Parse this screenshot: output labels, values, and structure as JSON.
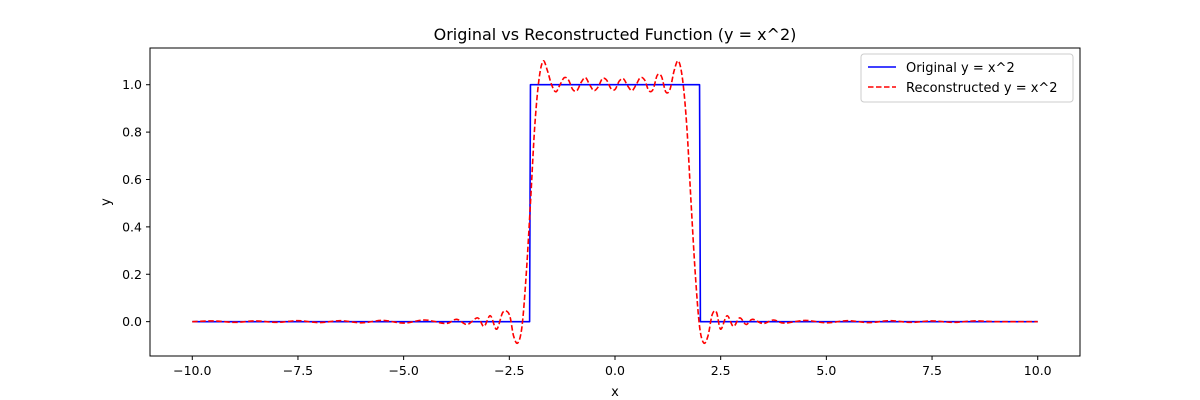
{
  "chart_data": {
    "type": "line",
    "title": "Original vs Reconstructed Function (y = x^2)",
    "xlabel": "x",
    "ylabel": "y",
    "xlim": [
      -11,
      11
    ],
    "ylim": [
      -0.145,
      1.155
    ],
    "xticks": [
      -10,
      -7.5,
      -5,
      -2.5,
      0,
      2.5,
      5,
      7.5,
      10
    ],
    "xtick_labels": [
      "−10.0",
      "−7.5",
      "−5.0",
      "−2.5",
      "0.0",
      "2.5",
      "5.0",
      "7.5",
      "10.0"
    ],
    "yticks": [
      0,
      0.2,
      0.4,
      0.6,
      0.8,
      1.0
    ],
    "ytick_labels": [
      "0.0",
      "0.2",
      "0.4",
      "0.6",
      "0.8",
      "1.0"
    ],
    "grid": false,
    "legend": {
      "position": "top-right"
    },
    "series": [
      {
        "name": "Original y = x^2",
        "color": "#0000ff",
        "style": "solid",
        "x": [
          -10,
          -2.02,
          -2.0,
          2.0,
          2.02,
          10
        ],
        "y": [
          0,
          0,
          1,
          1,
          0,
          0
        ]
      },
      {
        "name": "Reconstructed y = x^2",
        "color": "#ff0000",
        "style": "dashed",
        "x": [
          -10,
          -9.5,
          -9.0,
          -8.5,
          -8.0,
          -7.5,
          -7.0,
          -6.5,
          -6.0,
          -5.5,
          -5.0,
          -4.5,
          -4.0,
          -3.75,
          -3.5,
          -3.25,
          -3.1,
          -2.95,
          -2.8,
          -2.65,
          -2.5,
          -2.4,
          -2.3,
          -2.2,
          -2.1,
          -2.0,
          -1.9,
          -1.8,
          -1.7,
          -1.6,
          -1.5,
          -1.4,
          -1.3,
          -1.2,
          -1.1,
          -1.0,
          -0.9,
          -0.8,
          -0.7,
          -0.6,
          -0.5,
          -0.4,
          -0.3,
          -0.2,
          -0.1,
          0.0,
          0.1,
          0.2,
          0.3,
          0.4,
          0.5,
          0.6,
          0.7,
          0.8,
          0.9,
          1.0,
          1.1,
          1.2,
          1.3,
          1.4,
          1.5,
          1.6,
          1.7,
          1.8,
          1.9,
          2.0,
          2.1,
          2.2,
          2.3,
          2.4,
          2.5,
          2.65,
          2.8,
          2.95,
          3.1,
          3.25,
          3.5,
          3.75,
          4.0,
          4.5,
          5.0,
          5.5,
          6.0,
          6.5,
          7.0,
          7.5,
          8.0,
          8.5,
          9.0,
          9.5,
          10.0
        ],
        "y": [
          0.0,
          0.003,
          -0.003,
          0.003,
          -0.003,
          0.004,
          -0.004,
          0.004,
          -0.005,
          0.005,
          -0.006,
          0.007,
          -0.008,
          0.01,
          -0.012,
          0.016,
          -0.02,
          0.025,
          -0.032,
          0.04,
          0.03,
          -0.06,
          -0.09,
          -0.02,
          0.2,
          0.5,
          0.82,
          1.02,
          1.1,
          1.06,
          1.0,
          0.97,
          1.0,
          1.03,
          1.02,
          0.98,
          0.975,
          1.01,
          1.03,
          1.0,
          0.975,
          0.99,
          1.025,
          1.02,
          0.985,
          0.98,
          1.015,
          1.025,
          0.995,
          0.975,
          1.0,
          1.03,
          1.02,
          0.975,
          0.98,
          1.04,
          1.035,
          0.97,
          0.98,
          1.06,
          1.1,
          1.02,
          0.82,
          0.5,
          0.2,
          -0.02,
          -0.09,
          -0.06,
          0.03,
          0.04,
          -0.032,
          0.025,
          -0.02,
          0.016,
          -0.012,
          0.01,
          -0.008,
          0.007,
          -0.006,
          0.005,
          -0.005,
          0.004,
          -0.004,
          0.004,
          -0.003,
          0.003,
          -0.003,
          0.003,
          0.0,
          0.0,
          0.0
        ]
      }
    ]
  }
}
